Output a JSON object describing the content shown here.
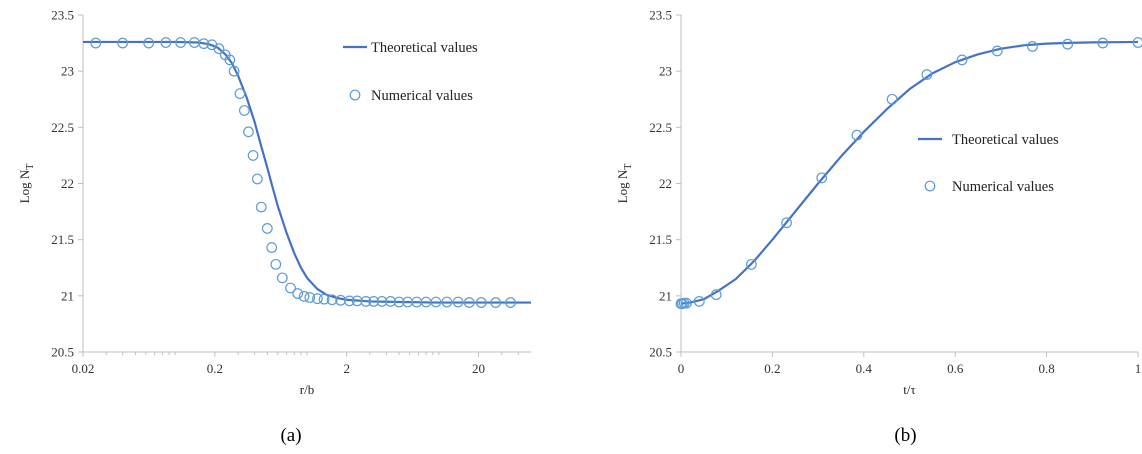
{
  "accent_color": "#4472C4",
  "marker_color": "#5B9BD5",
  "chart_data": [
    {
      "type": "line",
      "caption": "(a)",
      "xlabel": "r/b",
      "ylabel_main": "Log N",
      "ylabel_sub": "T",
      "xscale": "log",
      "xlim": [
        0.02,
        50
      ],
      "ylim": [
        20.5,
        23.5
      ],
      "xticks": [
        0.02,
        0.2,
        2,
        20
      ],
      "xtick_labels": [
        "0.02",
        "0.2",
        "2",
        "20"
      ],
      "yticks": [
        20.5,
        21,
        21.5,
        22,
        22.5,
        23,
        23.5
      ],
      "ytick_labels": [
        "20.5",
        "21",
        "21.5",
        "22",
        "22.5",
        "23",
        "23.5"
      ],
      "grid": false,
      "legend_position": "top-right",
      "series": [
        {
          "name": "Theoretical values",
          "style": "line",
          "points": [
            [
              0.02,
              23.26
            ],
            [
              0.05,
              23.26
            ],
            [
              0.1,
              23.26
            ],
            [
              0.15,
              23.255
            ],
            [
              0.18,
              23.24
            ],
            [
              0.21,
              23.21
            ],
            [
              0.24,
              23.15
            ],
            [
              0.27,
              23.07
            ],
            [
              0.3,
              22.96
            ],
            [
              0.35,
              22.76
            ],
            [
              0.4,
              22.55
            ],
            [
              0.45,
              22.33
            ],
            [
              0.5,
              22.14
            ],
            [
              0.55,
              21.96
            ],
            [
              0.6,
              21.8
            ],
            [
              0.7,
              21.56
            ],
            [
              0.8,
              21.38
            ],
            [
              0.9,
              21.25
            ],
            [
              1.0,
              21.16
            ],
            [
              1.2,
              21.06
            ],
            [
              1.4,
              21.01
            ],
            [
              1.7,
              20.98
            ],
            [
              2.0,
              20.965
            ],
            [
              3.0,
              20.95
            ],
            [
              5.0,
              20.945
            ],
            [
              10,
              20.94
            ],
            [
              20,
              20.94
            ],
            [
              50,
              20.94
            ]
          ]
        },
        {
          "name": "Numerical values",
          "style": "markers",
          "points": [
            [
              0.025,
              23.25
            ],
            [
              0.04,
              23.25
            ],
            [
              0.063,
              23.25
            ],
            [
              0.085,
              23.255
            ],
            [
              0.11,
              23.255
            ],
            [
              0.14,
              23.255
            ],
            [
              0.165,
              23.245
            ],
            [
              0.19,
              23.235
            ],
            [
              0.215,
              23.2
            ],
            [
              0.24,
              23.145
            ],
            [
              0.26,
              23.1
            ],
            [
              0.28,
              23.0
            ],
            [
              0.31,
              22.8
            ],
            [
              0.335,
              22.65
            ],
            [
              0.36,
              22.46
            ],
            [
              0.39,
              22.25
            ],
            [
              0.42,
              22.04
            ],
            [
              0.45,
              21.79
            ],
            [
              0.5,
              21.6
            ],
            [
              0.54,
              21.43
            ],
            [
              0.58,
              21.28
            ],
            [
              0.65,
              21.16
            ],
            [
              0.75,
              21.07
            ],
            [
              0.85,
              21.02
            ],
            [
              0.95,
              20.995
            ],
            [
              1.05,
              20.985
            ],
            [
              1.2,
              20.975
            ],
            [
              1.35,
              20.97
            ],
            [
              1.55,
              20.965
            ],
            [
              1.8,
              20.96
            ],
            [
              2.1,
              20.955
            ],
            [
              2.4,
              20.955
            ],
            [
              2.8,
              20.95
            ],
            [
              3.2,
              20.95
            ],
            [
              3.7,
              20.95
            ],
            [
              4.3,
              20.95
            ],
            [
              5.0,
              20.945
            ],
            [
              5.8,
              20.945
            ],
            [
              6.8,
              20.945
            ],
            [
              8.0,
              20.945
            ],
            [
              9.5,
              20.945
            ],
            [
              11.5,
              20.945
            ],
            [
              14,
              20.945
            ],
            [
              17,
              20.94
            ],
            [
              21,
              20.94
            ],
            [
              27,
              20.94
            ],
            [
              35,
              20.94
            ]
          ]
        }
      ]
    },
    {
      "type": "line",
      "caption": "(b)",
      "xlabel": "t/τ",
      "ylabel_main": "Log N",
      "ylabel_sub": "T",
      "xscale": "linear",
      "xlim": [
        0,
        1
      ],
      "ylim": [
        20.5,
        23.5
      ],
      "xticks": [
        0,
        0.2,
        0.4,
        0.6,
        0.8,
        1
      ],
      "xtick_labels": [
        "0",
        "0.2",
        "0.4",
        "0.6",
        "0.8",
        "1"
      ],
      "yticks": [
        20.5,
        21,
        21.5,
        22,
        22.5,
        23,
        23.5
      ],
      "ytick_labels": [
        "20.5",
        "21",
        "21.5",
        "22",
        "22.5",
        "23",
        "23.5"
      ],
      "grid": false,
      "legend_position": "right",
      "series": [
        {
          "name": "Theoretical values",
          "style": "line",
          "points": [
            [
              0,
              20.93
            ],
            [
              0.02,
              20.94
            ],
            [
              0.05,
              20.97
            ],
            [
              0.08,
              21.04
            ],
            [
              0.12,
              21.15
            ],
            [
              0.16,
              21.31
            ],
            [
              0.2,
              21.5
            ],
            [
              0.25,
              21.75
            ],
            [
              0.3,
              22.0
            ],
            [
              0.35,
              22.24
            ],
            [
              0.4,
              22.46
            ],
            [
              0.45,
              22.66
            ],
            [
              0.5,
              22.84
            ],
            [
              0.55,
              22.98
            ],
            [
              0.6,
              23.08
            ],
            [
              0.65,
              23.15
            ],
            [
              0.7,
              23.2
            ],
            [
              0.75,
              23.23
            ],
            [
              0.8,
              23.245
            ],
            [
              0.85,
              23.252
            ],
            [
              0.9,
              23.256
            ],
            [
              0.95,
              23.258
            ],
            [
              1.0,
              23.26
            ]
          ]
        },
        {
          "name": "Numerical values",
          "style": "markers",
          "points": [
            [
              0,
              20.93
            ],
            [
              0.003,
              20.93
            ],
            [
              0.007,
              20.935
            ],
            [
              0.012,
              20.935
            ],
            [
              0.04,
              20.95
            ],
            [
              0.077,
              21.01
            ],
            [
              0.154,
              21.28
            ],
            [
              0.231,
              21.65
            ],
            [
              0.308,
              22.05
            ],
            [
              0.385,
              22.43
            ],
            [
              0.462,
              22.75
            ],
            [
              0.538,
              22.97
            ],
            [
              0.615,
              23.1
            ],
            [
              0.692,
              23.18
            ],
            [
              0.769,
              23.22
            ],
            [
              0.846,
              23.24
            ],
            [
              0.923,
              23.25
            ],
            [
              1.0,
              23.255
            ]
          ]
        }
      ]
    }
  ]
}
